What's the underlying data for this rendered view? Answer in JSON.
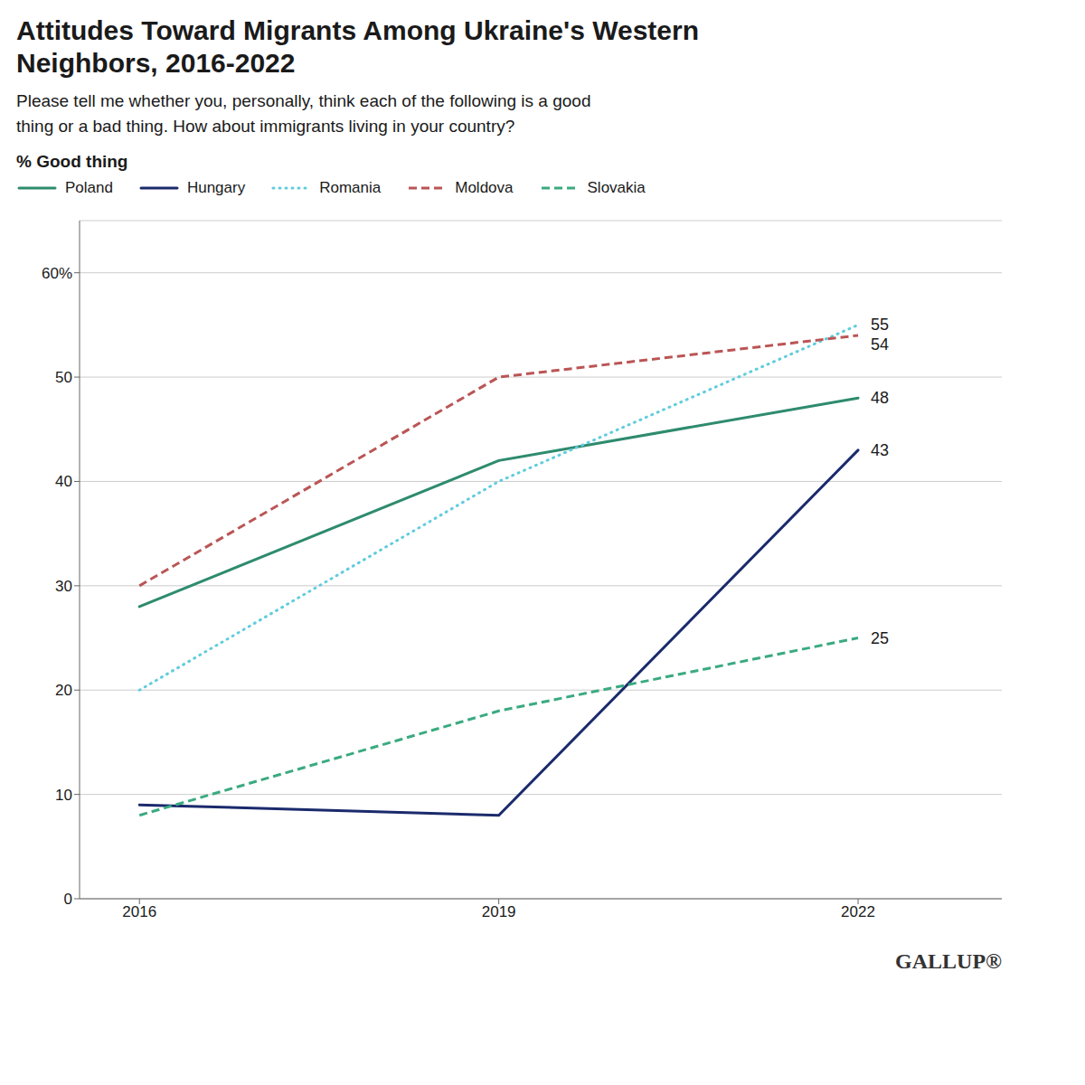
{
  "chart_data": {
    "type": "line",
    "title": "Attitudes Toward Migrants Among Ukraine's Western\nNeighbors, 2016-2022",
    "subtitle": "Please tell me whether you, personally, think each of the following is a good\nthing or a bad thing. How about immigrants living in your country?",
    "y_label": "% Good thing",
    "x": [
      2016,
      2019,
      2022
    ],
    "series": [
      {
        "name": "Poland",
        "color": "#2e8b6e",
        "line_style": "solid",
        "values": [
          28,
          42,
          48
        ]
      },
      {
        "name": "Hungary",
        "color": "#1a2a6c",
        "line_style": "solid",
        "values": [
          9,
          8,
          43
        ]
      },
      {
        "name": "Romania",
        "color": "#60ccdd",
        "line_style": "dotted",
        "values": [
          20,
          40,
          55
        ]
      },
      {
        "name": "Moldova",
        "color": "#bb5555",
        "line_style": "dashed",
        "values": [
          30,
          50,
          54
        ]
      },
      {
        "name": "Slovakia",
        "color": "#3aaa80",
        "line_style": "dashed",
        "values": [
          8,
          18,
          25
        ]
      }
    ],
    "xlim": [
      2015.5,
      2023.2
    ],
    "xticks": [
      2016,
      2019,
      2022
    ],
    "ylim": [
      0,
      65
    ],
    "yticks": [
      0,
      10,
      20,
      30,
      40,
      50,
      {
        "value": 60,
        "label": "60%"
      }
    ],
    "grid": true,
    "legend": "top-left",
    "annotations": [
      {
        "text": "48",
        "x": 2022,
        "y": 48
      },
      {
        "text": "43",
        "x": 2022,
        "y": 43
      },
      {
        "text": "55",
        "x": 2022,
        "y": 55
      },
      {
        "text": "54",
        "x": 2022,
        "y": 54
      },
      {
        "text": "25",
        "x": 2022,
        "y": 25
      },
      {
        "text": "GALLUP®"
      }
    ]
  }
}
